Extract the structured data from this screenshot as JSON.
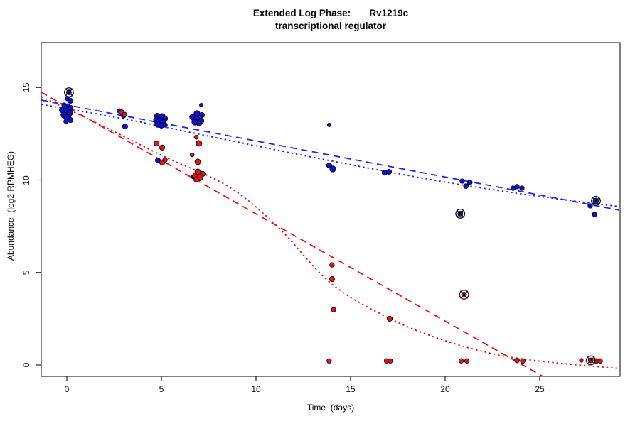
{
  "chart_data": {
    "type": "scatter",
    "title": {
      "line1": "Extended Log Phase:       Rv1219c",
      "line2": "transcriptional regulator"
    },
    "xlabel": "Time  (days)",
    "ylabel": "Abundance  (log2 RPMHEG)",
    "x_ticks": [
      "0",
      "5",
      "10",
      "15",
      "20",
      "25"
    ],
    "x_tick_values": [
      0,
      5,
      10,
      15,
      20,
      25
    ],
    "y_ticks": [
      "0",
      "5",
      "10",
      "15"
    ],
    "y_tick_values": [
      0,
      5,
      10,
      15
    ],
    "xlim": [
      -1.35,
      29.2
    ],
    "ylim": [
      -0.61,
      18.05
    ],
    "grid": false,
    "legend": "none",
    "colors": {
      "series1_point": "#0f0fd8",
      "series2_point": "#e81414",
      "series1_line": "#2222ee",
      "series2_line": "#ee1111",
      "outlier_ring": "#111111",
      "box": "#000000"
    },
    "series": [
      {
        "name": "blue-replicates",
        "marker": "filled-circle",
        "color": "#0f0fd8",
        "points": [
          [
            0.11,
            14.74,
            3.4
          ],
          [
            0.04,
            14.4,
            3.2
          ],
          [
            0.19,
            14.28,
            3.6
          ],
          [
            -0.15,
            14.05,
            3.2
          ],
          [
            0.04,
            13.97,
            4.2
          ],
          [
            0.19,
            13.9,
            3.6
          ],
          [
            -0.26,
            13.78,
            3.6
          ],
          [
            -0.04,
            13.7,
            4.6
          ],
          [
            0.15,
            13.63,
            4.2
          ],
          [
            -0.15,
            13.51,
            4.2
          ],
          [
            0.04,
            13.36,
            4.6
          ],
          [
            0.19,
            13.24,
            3.6
          ],
          [
            -0.04,
            13.17,
            3.2
          ],
          [
            2.78,
            13.74,
            3.2
          ],
          [
            3.0,
            13.47,
            3.2
          ],
          [
            3.08,
            12.9,
            3.6
          ],
          [
            4.77,
            13.47,
            3.6
          ],
          [
            5.04,
            13.43,
            4.2
          ],
          [
            5.19,
            13.32,
            3.6
          ],
          [
            4.74,
            13.24,
            4.2
          ],
          [
            4.92,
            13.17,
            4.6
          ],
          [
            5.11,
            13.13,
            3.6
          ],
          [
            4.81,
            13.01,
            4.2
          ],
          [
            5.0,
            12.94,
            3.6
          ],
          [
            5.19,
            12.97,
            3.2
          ],
          [
            4.81,
            11.06,
            3.4
          ],
          [
            7.11,
            14.05,
            2.6
          ],
          [
            6.88,
            13.59,
            4.2
          ],
          [
            7.14,
            13.51,
            3.6
          ],
          [
            6.65,
            13.4,
            4.2
          ],
          [
            6.88,
            13.28,
            4.6
          ],
          [
            7.11,
            13.2,
            3.6
          ],
          [
            6.77,
            13.13,
            4.2
          ],
          [
            6.99,
            13.05,
            3.6
          ],
          [
            6.69,
            10.17,
            3.0
          ],
          [
            13.87,
            12.98,
            2.6
          ],
          [
            13.87,
            10.79,
            3.6
          ],
          [
            14.06,
            10.6,
            4.2
          ],
          [
            16.8,
            10.4,
            3.6
          ],
          [
            17.03,
            10.44,
            3.6
          ],
          [
            20.9,
            9.94,
            3.2
          ],
          [
            21.3,
            9.87,
            3.4
          ],
          [
            21.1,
            9.67,
            3.4
          ],
          [
            20.8,
            8.18,
            3.4
          ],
          [
            23.6,
            9.56,
            3.2
          ],
          [
            23.8,
            9.64,
            3.2
          ],
          [
            24.06,
            9.56,
            3.2
          ],
          [
            27.67,
            8.6,
            3.2
          ],
          [
            27.9,
            8.14,
            3.2
          ],
          [
            27.97,
            8.87,
            4.0
          ]
        ]
      },
      {
        "name": "red-replicates",
        "marker": "filled-circle",
        "color": "#e81414",
        "points": [
          [
            2.89,
            13.67,
            3.4
          ],
          [
            3.05,
            13.55,
            3.0
          ],
          [
            4.74,
            11.98,
            3.6
          ],
          [
            5.04,
            11.75,
            3.6
          ],
          [
            5.04,
            10.94,
            3.6
          ],
          [
            5.19,
            11.09,
            3.2
          ],
          [
            6.84,
            12.32,
            2.8
          ],
          [
            6.99,
            11.98,
            4.0
          ],
          [
            6.62,
            11.36,
            2.8
          ],
          [
            6.92,
            10.98,
            4.0
          ],
          [
            6.92,
            10.44,
            4.0
          ],
          [
            7.18,
            10.33,
            3.6
          ],
          [
            6.77,
            10.25,
            3.2
          ],
          [
            7.03,
            10.13,
            4.4
          ],
          [
            6.84,
            10.02,
            3.2
          ],
          [
            14.02,
            5.41,
            3.2
          ],
          [
            14.02,
            4.64,
            3.6
          ],
          [
            14.1,
            2.99,
            3.2
          ],
          [
            13.87,
            0.22,
            3.2
          ],
          [
            17.07,
            2.5,
            3.6
          ],
          [
            16.9,
            0.22,
            3.2
          ],
          [
            17.1,
            0.22,
            3.2
          ],
          [
            20.85,
            0.22,
            3.2
          ],
          [
            21.15,
            0.22,
            3.2
          ],
          [
            21.0,
            3.8,
            3.4
          ],
          [
            23.8,
            0.25,
            3.4
          ],
          [
            24.1,
            0.22,
            3.4
          ],
          [
            27.2,
            0.25,
            2.6
          ],
          [
            27.7,
            0.25,
            3.4
          ],
          [
            28.0,
            0.22,
            3.4
          ],
          [
            28.2,
            0.22,
            3.2
          ]
        ]
      }
    ],
    "fit_lines": [
      {
        "name": "blue-linear-fit",
        "color": "#2222ee",
        "style": "dashed",
        "points": [
          [
            -1.35,
            14.32
          ],
          [
            29.2,
            8.37
          ]
        ]
      },
      {
        "name": "blue-smooth-fit",
        "color": "#2222ee",
        "style": "dotted",
        "points": [
          [
            -1.35,
            14.09
          ],
          [
            3.2,
            13.27
          ],
          [
            7.74,
            12.32
          ],
          [
            13.0,
            11.23
          ],
          [
            19.02,
            10.06
          ],
          [
            24.0,
            9.25
          ],
          [
            29.2,
            8.56
          ]
        ]
      },
      {
        "name": "red-linear-fit",
        "color": "#ee1111",
        "style": "dashed",
        "points": [
          [
            -1.35,
            14.74
          ],
          [
            25.15,
            -0.61
          ]
        ]
      },
      {
        "name": "red-smooth-fit",
        "color": "#ee1111",
        "style": "dotted",
        "points": [
          [
            -1.35,
            14.51
          ],
          [
            2.1,
            12.82
          ],
          [
            5.1,
            11.29
          ],
          [
            8.5,
            9.67
          ],
          [
            11.1,
            7.52
          ],
          [
            14.0,
            4.38
          ],
          [
            17.1,
            2.5
          ],
          [
            19.8,
            1.38
          ],
          [
            22.8,
            0.54
          ],
          [
            25.8,
            0.12
          ],
          [
            29.2,
            -0.19
          ]
        ]
      }
    ],
    "outliers_marked": [
      [
        0.11,
        14.74
      ],
      [
        20.8,
        8.18
      ],
      [
        27.97,
        8.87
      ],
      [
        21.0,
        3.8
      ],
      [
        27.7,
        0.25
      ]
    ]
  }
}
